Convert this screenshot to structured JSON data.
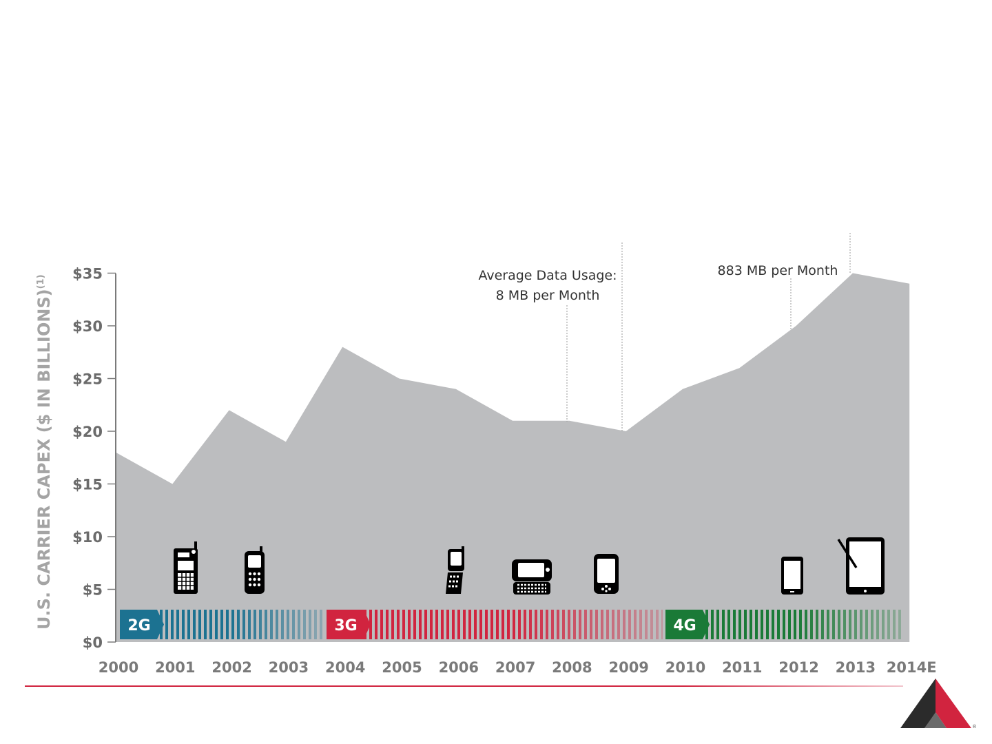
{
  "chart_data": {
    "type": "area",
    "title": "",
    "ylabel": "U.S. CARRIER CAPEX ($ IN BILLIONS)",
    "ylabel_superscript": "(1)",
    "xlabel": "",
    "categories": [
      "2000",
      "2001",
      "2002",
      "2003",
      "2004",
      "2005",
      "2006",
      "2007",
      "2008",
      "2009",
      "2010",
      "2011",
      "2012",
      "2013",
      "2014E"
    ],
    "series": [
      {
        "values": [
          18,
          15,
          22,
          19,
          28,
          25,
          24,
          21,
          21,
          20,
          24,
          26,
          30,
          35,
          34
        ],
        "color": "#bcbdbf"
      }
    ],
    "ylim": [
      0,
      35
    ],
    "yticks": [
      0,
      5,
      10,
      15,
      20,
      25,
      30,
      35
    ],
    "ytick_labels": [
      "$0",
      "$5",
      "$10",
      "$15",
      "$20",
      "$25",
      "$30",
      "$35"
    ],
    "grid": false,
    "eras": [
      {
        "label": "2G",
        "color": "#1c7291",
        "start": "2000",
        "end": "2003"
      },
      {
        "label": "3G",
        "color": "#d1243f",
        "start": "2004",
        "end": "2009"
      },
      {
        "label": "4G",
        "color": "#1a7a37",
        "start": "2010",
        "end": "2014E"
      }
    ],
    "annotations": [
      {
        "lines": [
          "Average Data Usage:",
          "8 MB per Month"
        ],
        "at": "2008"
      },
      {
        "lines": [
          "883 MB per Month"
        ],
        "at": "2012"
      }
    ],
    "device_icons": [
      {
        "at": "2001",
        "icon": "antenna-phone-icon"
      },
      {
        "at": "2002",
        "icon": "candybar-phone-icon"
      },
      {
        "at": "2006",
        "icon": "flip-phone-icon"
      },
      {
        "at": "2007",
        "icon": "slider-qwerty-phone-icon"
      },
      {
        "at": "2008",
        "icon": "touch-smartphone-icon"
      },
      {
        "at": "2012",
        "icon": "smartphone-icon"
      },
      {
        "at": "2013",
        "icon": "tablet-stylus-icon"
      }
    ]
  },
  "colors": {
    "accent_line": "#d1243f",
    "logo_dark": "#2b2b2b",
    "logo_red": "#d1243f"
  },
  "logo": {
    "icon": "company-logo-icon",
    "registered": "®"
  }
}
